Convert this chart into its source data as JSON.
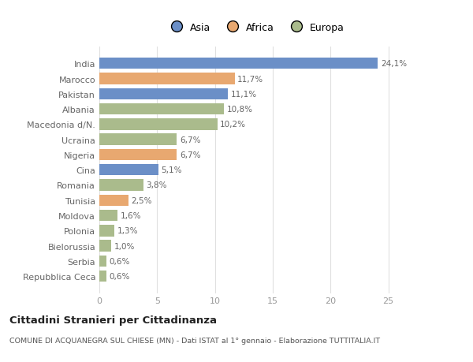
{
  "categories": [
    "Repubblica Ceca",
    "Serbia",
    "Bielorussia",
    "Polonia",
    "Moldova",
    "Tunisia",
    "Romania",
    "Cina",
    "Nigeria",
    "Ucraina",
    "Macedonia d/N.",
    "Albania",
    "Pakistan",
    "Marocco",
    "India"
  ],
  "values": [
    0.6,
    0.6,
    1.0,
    1.3,
    1.6,
    2.5,
    3.8,
    5.1,
    6.7,
    6.7,
    10.2,
    10.8,
    11.1,
    11.7,
    24.1
  ],
  "labels": [
    "0,6%",
    "0,6%",
    "1,0%",
    "1,3%",
    "1,6%",
    "2,5%",
    "3,8%",
    "5,1%",
    "6,7%",
    "6,7%",
    "10,2%",
    "10,8%",
    "11,1%",
    "11,7%",
    "24,1%"
  ],
  "continent": [
    "Europa",
    "Europa",
    "Europa",
    "Europa",
    "Europa",
    "Africa",
    "Europa",
    "Asia",
    "Africa",
    "Europa",
    "Europa",
    "Europa",
    "Asia",
    "Africa",
    "Asia"
  ],
  "legend_labels": [
    "Asia",
    "Africa",
    "Europa"
  ],
  "legend_colors": [
    "#6b8fc7",
    "#e8a870",
    "#aabb8c"
  ],
  "bar_color_map": {
    "Asia": "#6b8fc7",
    "Africa": "#e8a870",
    "Europa": "#aabb8c"
  },
  "title": "Cittadini Stranieri per Cittadinanza",
  "subtitle": "COMUNE DI ACQUANEGRA SUL CHIESE (MN) - Dati ISTAT al 1° gennaio - Elaborazione TUTTITALIA.IT",
  "xlim": [
    0,
    27
  ],
  "xticks": [
    0,
    5,
    10,
    15,
    20,
    25
  ],
  "background_color": "#ffffff",
  "grid_color": "#e0e0e0",
  "label_color": "#666666",
  "tick_color": "#999999"
}
